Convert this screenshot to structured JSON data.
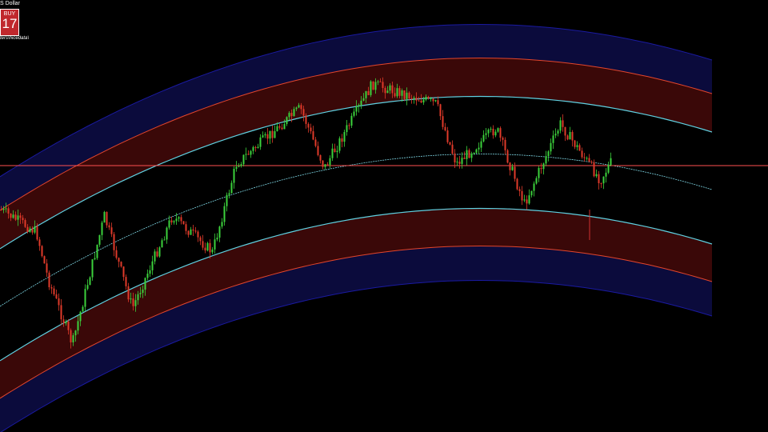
{
  "window": {
    "symbol": "S Dollar",
    "buy_label": "BUY",
    "buy_price": "17",
    "path": "ters\\hicedata\\"
  }
}
